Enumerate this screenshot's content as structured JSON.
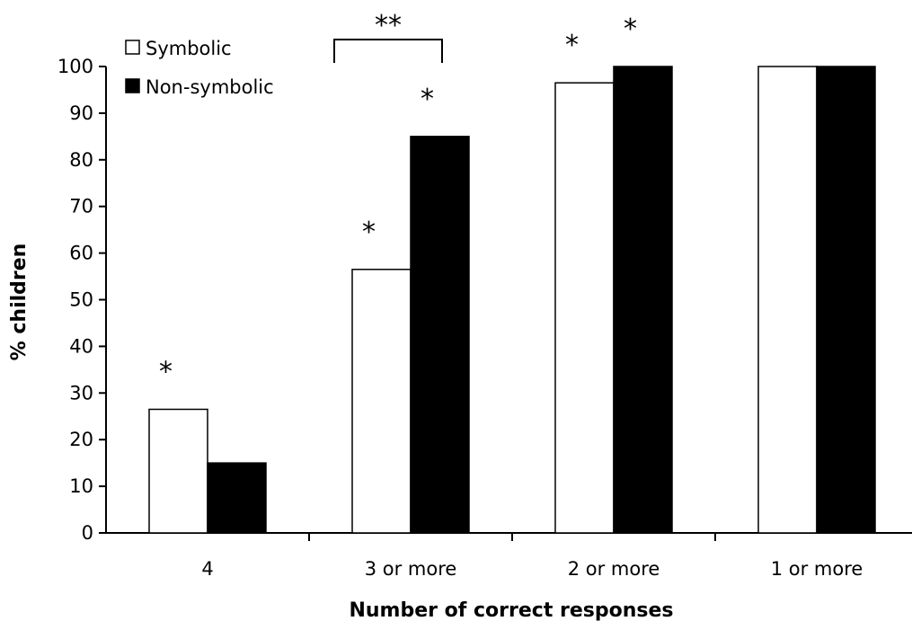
{
  "chart_data": {
    "type": "bar",
    "categories": [
      "4",
      "3 or more",
      "2 or more",
      "1 or more"
    ],
    "series": [
      {
        "name": "Symbolic",
        "values": [
          26.5,
          56.5,
          96.5,
          100
        ],
        "color": "#ffffff",
        "stroke": "#000000"
      },
      {
        "name": "Non-symbolic",
        "values": [
          15,
          85,
          100,
          100
        ],
        "color": "#000000",
        "stroke": "#000000"
      }
    ],
    "xlabel": "Number of correct responses",
    "ylabel": "% children",
    "ylim": [
      0,
      100
    ],
    "yticks": [
      0,
      10,
      20,
      30,
      40,
      50,
      60,
      70,
      80,
      90,
      100
    ],
    "grid": false,
    "legend": {
      "placement": "top-left",
      "markers": [
        "□",
        "■"
      ]
    },
    "annotations": [
      {
        "text": "*",
        "category": 0,
        "series": 0
      },
      {
        "text": "*",
        "category": 1,
        "series": 0
      },
      {
        "text": "*",
        "category": 1,
        "series": 1
      },
      {
        "text": "*",
        "category": 2,
        "series": 0
      },
      {
        "text": "*",
        "category": 2,
        "series": 1
      },
      {
        "text": "**",
        "category": 1,
        "series": "bracket"
      }
    ]
  }
}
